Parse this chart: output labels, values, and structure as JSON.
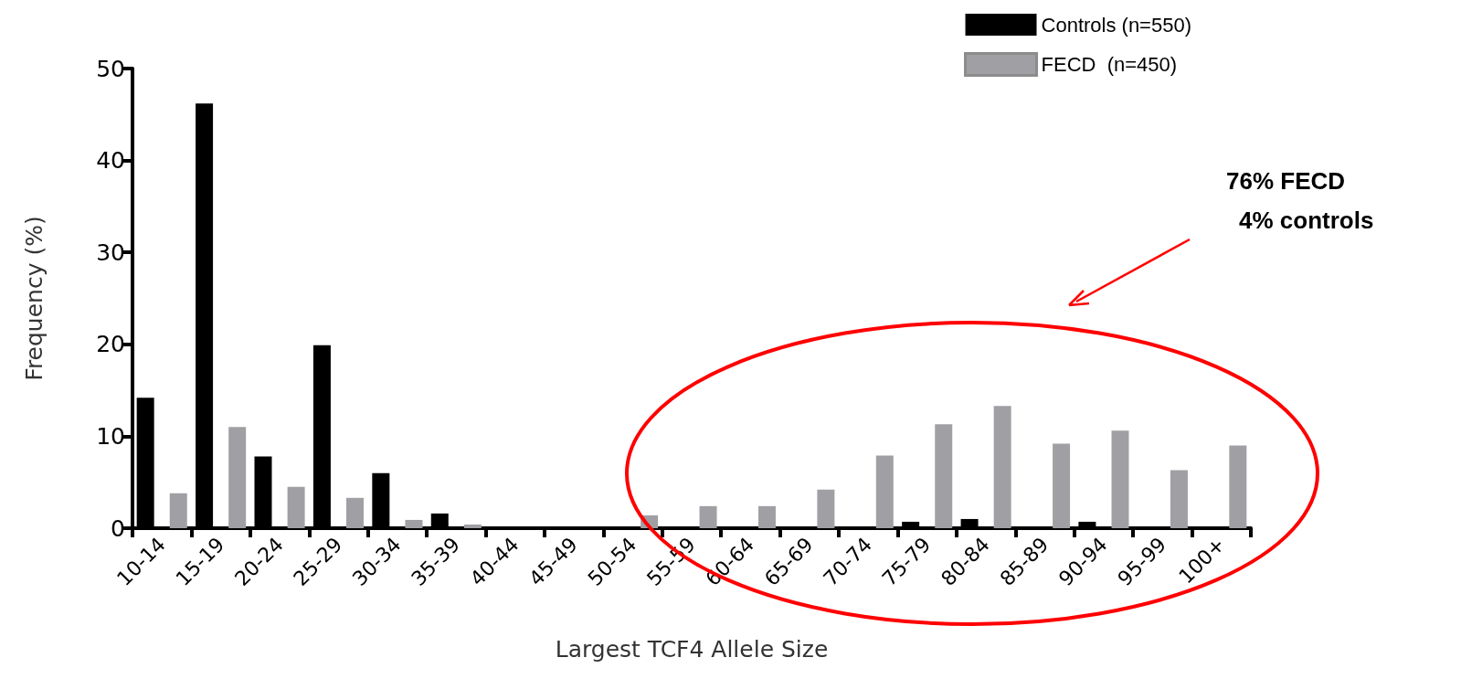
{
  "chart_data": {
    "type": "bar",
    "xlabel": "Largest TCF4 Allele Size",
    "ylabel": "Frequency (%)",
    "categories": [
      "10-14",
      "15-19",
      "20-24",
      "25-29",
      "30-34",
      "35-39",
      "40-44",
      "45-49",
      "50-54",
      "55-59",
      "60-64",
      "65-69",
      "70-74",
      "75-79",
      "80-84",
      "85-89",
      "90-94",
      "95-99",
      "100+"
    ],
    "series": [
      {
        "name": "Controls (n=550)",
        "color": "#000000",
        "values": [
          14.2,
          46.2,
          7.8,
          19.9,
          6.0,
          1.6,
          0,
          0,
          0,
          0,
          0,
          0,
          0,
          0.7,
          1.0,
          0,
          0.7,
          0,
          0
        ]
      },
      {
        "name": "FECD  (n=450)",
        "color": "#a0a0a4",
        "values": [
          3.8,
          11.0,
          4.5,
          3.3,
          0.9,
          0.4,
          0,
          0,
          1.4,
          2.4,
          2.4,
          4.2,
          7.9,
          11.3,
          13.3,
          9.2,
          10.6,
          6.3,
          9.0
        ]
      }
    ],
    "ylim": [
      0,
      50
    ],
    "yticks": [
      0,
      10,
      20,
      30,
      40,
      50
    ],
    "grid": false,
    "legend": "top right",
    "annotations": [
      "76% FECD",
      "4% controls"
    ]
  }
}
